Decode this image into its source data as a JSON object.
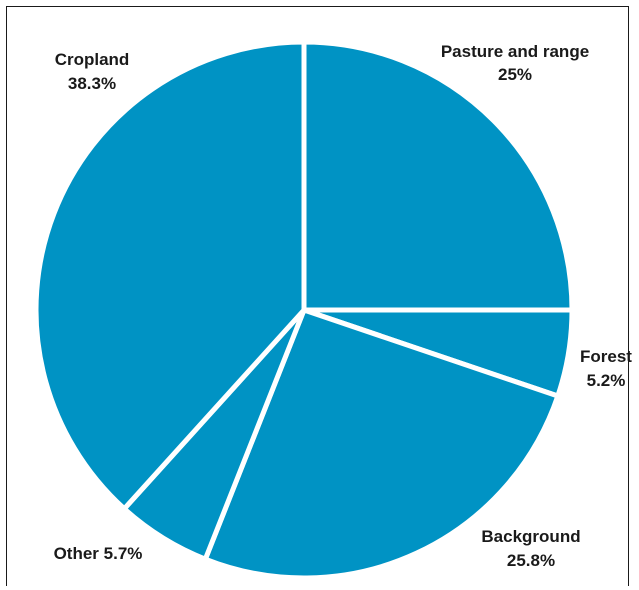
{
  "chart_data": {
    "type": "pie",
    "title": "",
    "slices": [
      {
        "label": "Pasture and range",
        "value": 25,
        "value_label": "25%"
      },
      {
        "label": "Forest",
        "value": 5.2,
        "value_label": "5.2%"
      },
      {
        "label": "Background",
        "value": 25.8,
        "value_label": "25.8%"
      },
      {
        "label": "Other",
        "value": 5.7,
        "value_label": "5.7%"
      },
      {
        "label": "Cropland",
        "value": 38.3,
        "value_label": "38.3%"
      }
    ],
    "start": "12 o'clock",
    "direction": "clockwise",
    "slice_color": "#0093c4",
    "separator_color": "#ffffff",
    "legend": "none"
  }
}
